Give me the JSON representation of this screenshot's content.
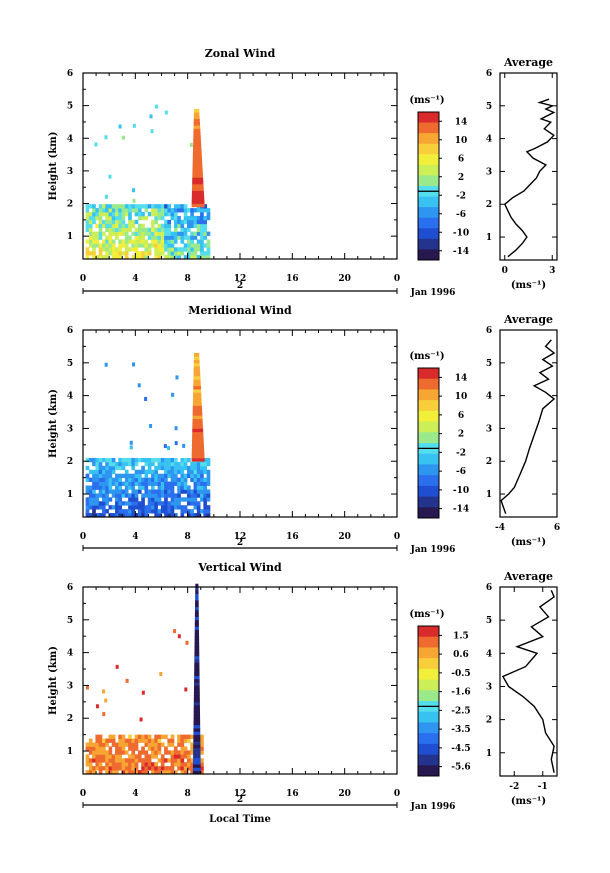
{
  "panels": [
    {
      "title": "Zonal Wind",
      "ylabel": "Height (km)",
      "y_ticks": [
        "1",
        "2",
        "3",
        "4",
        "5",
        "6"
      ],
      "x_ticks": [
        "0",
        "4",
        "8",
        "12",
        "16",
        "20",
        "0"
      ],
      "date_mark": "2",
      "date_label": "Jan 1996",
      "unit_label": "(ms⁻¹)",
      "colorbar_ticks": [
        "14",
        "10",
        "6",
        "2",
        "-2",
        "-6",
        "-10",
        "-14"
      ],
      "avg_title": "Average",
      "avg_x_ticks": [
        "0",
        "3"
      ],
      "avg_unit": "(ms⁻¹)",
      "avg_xlim": [
        -0.3,
        3.3
      ],
      "avg_profile": [
        [
          0.2,
          0.4
        ],
        [
          0.7,
          0.6
        ],
        [
          1.1,
          0.8
        ],
        [
          1.4,
          1.0
        ],
        [
          1.1,
          1.2
        ],
        [
          0.7,
          1.4
        ],
        [
          0.4,
          1.6
        ],
        [
          0.2,
          1.8
        ],
        [
          0.0,
          2.0
        ],
        [
          0.5,
          2.2
        ],
        [
          1.2,
          2.4
        ],
        [
          1.6,
          2.6
        ],
        [
          2.0,
          2.8
        ],
        [
          2.2,
          3.0
        ],
        [
          2.6,
          3.2
        ],
        [
          1.8,
          3.4
        ],
        [
          1.4,
          3.6
        ],
        [
          1.9,
          3.7
        ],
        [
          2.7,
          3.9
        ],
        [
          3.1,
          4.1
        ],
        [
          2.5,
          4.3
        ],
        [
          2.9,
          4.5
        ],
        [
          2.3,
          4.6
        ],
        [
          3.1,
          4.8
        ],
        [
          2.6,
          4.9
        ],
        [
          3.0,
          5.0
        ],
        [
          2.2,
          5.1
        ],
        [
          2.8,
          5.2
        ]
      ],
      "hmap": {
        "t_start": 0.2,
        "t_end": 9.6,
        "h_top": 1.9,
        "top_value": -1,
        "spike_t": [
          8.3,
          9.3
        ],
        "spike_h": [
          1.9,
          4.8
        ],
        "spike_value": 13,
        "low_value": 4,
        "pattern": "zonal"
      }
    },
    {
      "title": "Meridional Wind",
      "ylabel": "Height (km)",
      "y_ticks": [
        "1",
        "2",
        "3",
        "4",
        "5",
        "6"
      ],
      "x_ticks": [
        "0",
        "4",
        "8",
        "12",
        "16",
        "20",
        "0"
      ],
      "date_mark": "2",
      "date_label": "Jan 1996",
      "unit_label": "(ms⁻¹)",
      "colorbar_ticks": [
        "14",
        "10",
        "6",
        "2",
        "-2",
        "-6",
        "-10",
        "-14"
      ],
      "avg_title": "Average",
      "avg_x_ticks": [
        "-4",
        "6"
      ],
      "avg_unit": "(ms⁻¹)",
      "avg_xlim": [
        -4,
        6
      ],
      "avg_profile": [
        [
          -3.0,
          0.4
        ],
        [
          -3.8,
          0.8
        ],
        [
          -2.5,
          1.0
        ],
        [
          -1.5,
          1.2
        ],
        [
          -0.5,
          1.6
        ],
        [
          0.5,
          2.0
        ],
        [
          1.2,
          2.4
        ],
        [
          2.0,
          2.8
        ],
        [
          2.8,
          3.2
        ],
        [
          3.5,
          3.6
        ],
        [
          5.5,
          3.9
        ],
        [
          4.0,
          4.1
        ],
        [
          2.0,
          4.3
        ],
        [
          4.5,
          4.5
        ],
        [
          3.0,
          4.7
        ],
        [
          5.2,
          4.9
        ],
        [
          3.5,
          5.1
        ],
        [
          5.5,
          5.3
        ],
        [
          4.0,
          5.5
        ],
        [
          5.0,
          5.7
        ]
      ],
      "hmap": {
        "t_start": 0.2,
        "t_end": 9.6,
        "h_top": 2.0,
        "top_value": -5,
        "spike_t": [
          8.3,
          9.3
        ],
        "spike_h": [
          2.0,
          5.2
        ],
        "spike_value": 12,
        "low_value": -9,
        "pattern": "meridional"
      }
    },
    {
      "title": "Vertical Wind",
      "ylabel": "Height (km)",
      "y_ticks": [
        "1",
        "2",
        "3",
        "4",
        "5",
        "6"
      ],
      "x_ticks": [
        "0",
        "4",
        "8",
        "12",
        "16",
        "20",
        "0"
      ],
      "date_mark": "2",
      "date_label": "Jan 1996",
      "xlabel": "Local Time",
      "unit_label": "(ms⁻¹)",
      "colorbar_ticks": [
        "1.5",
        "0.6",
        "-0.5",
        "-1.6",
        "-2.5",
        "-3.5",
        "-4.5",
        "-5.6"
      ],
      "avg_title": "Average",
      "avg_x_ticks": [
        "-2",
        "-1"
      ],
      "avg_unit": "(ms⁻¹)",
      "avg_xlim": [
        -2.5,
        -0.5
      ],
      "avg_profile": [
        [
          -0.6,
          0.4
        ],
        [
          -0.7,
          0.8
        ],
        [
          -0.6,
          1.2
        ],
        [
          -0.9,
          1.6
        ],
        [
          -1.0,
          2.0
        ],
        [
          -1.3,
          2.4
        ],
        [
          -1.7,
          2.7
        ],
        [
          -2.2,
          3.0
        ],
        [
          -2.4,
          3.3
        ],
        [
          -1.6,
          3.6
        ],
        [
          -1.2,
          4.0
        ],
        [
          -1.9,
          4.2
        ],
        [
          -1.0,
          4.5
        ],
        [
          -1.4,
          4.8
        ],
        [
          -0.8,
          5.1
        ],
        [
          -1.1,
          5.4
        ],
        [
          -0.6,
          5.7
        ],
        [
          -0.7,
          5.9
        ]
      ],
      "hmap": {
        "t_start": 0.2,
        "t_end": 9.0,
        "h_top": 1.5,
        "top_value": 0.3,
        "spike_t": [
          8.4,
          9.0
        ],
        "spike_h": [
          0.3,
          6.0
        ],
        "spike_value": -5.5,
        "low_value": 0.6,
        "pattern": "vertical"
      }
    }
  ],
  "chart_data": [
    {
      "type": "heatmap",
      "title": "Zonal Wind",
      "xlabel": "",
      "ylabel": "Height (km)",
      "xlim": [
        0,
        24
      ],
      "ylim": [
        0.3,
        6
      ],
      "colorbar_range": [
        -14,
        14
      ],
      "series": [
        {
          "name": "Average",
          "x": [
            0.2,
            1.1,
            0.0,
            2.0,
            2.6,
            1.4,
            3.1,
            2.3,
            3.0,
            2.8
          ],
          "y": [
            0.4,
            0.8,
            2.0,
            2.8,
            3.2,
            3.6,
            4.1,
            4.6,
            5.0,
            5.2
          ]
        }
      ]
    },
    {
      "type": "heatmap",
      "title": "Meridional Wind",
      "xlabel": "",
      "ylabel": "Height (km)",
      "xlim": [
        0,
        24
      ],
      "ylim": [
        0.3,
        6
      ],
      "colorbar_range": [
        -14,
        14
      ],
      "series": [
        {
          "name": "Average",
          "x": [
            -3.0,
            -2.5,
            0.5,
            2.0,
            3.5,
            5.5,
            2.0,
            5.2,
            5.5,
            5.0
          ],
          "y": [
            0.4,
            1.0,
            2.0,
            2.8,
            3.6,
            3.9,
            4.3,
            4.9,
            5.3,
            5.7
          ]
        }
      ]
    },
    {
      "type": "heatmap",
      "title": "Vertical Wind",
      "xlabel": "Local Time",
      "ylabel": "Height (km)",
      "xlim": [
        0,
        24
      ],
      "ylim": [
        0.3,
        6
      ],
      "colorbar_range": [
        -5.6,
        1.5
      ],
      "series": [
        {
          "name": "Average",
          "x": [
            -0.6,
            -0.6,
            -1.0,
            -1.7,
            -2.4,
            -1.2,
            -1.0,
            -0.8,
            -0.6
          ],
          "y": [
            0.4,
            1.2,
            2.0,
            2.7,
            3.3,
            4.0,
            4.5,
            5.1,
            5.7
          ]
        }
      ]
    }
  ]
}
